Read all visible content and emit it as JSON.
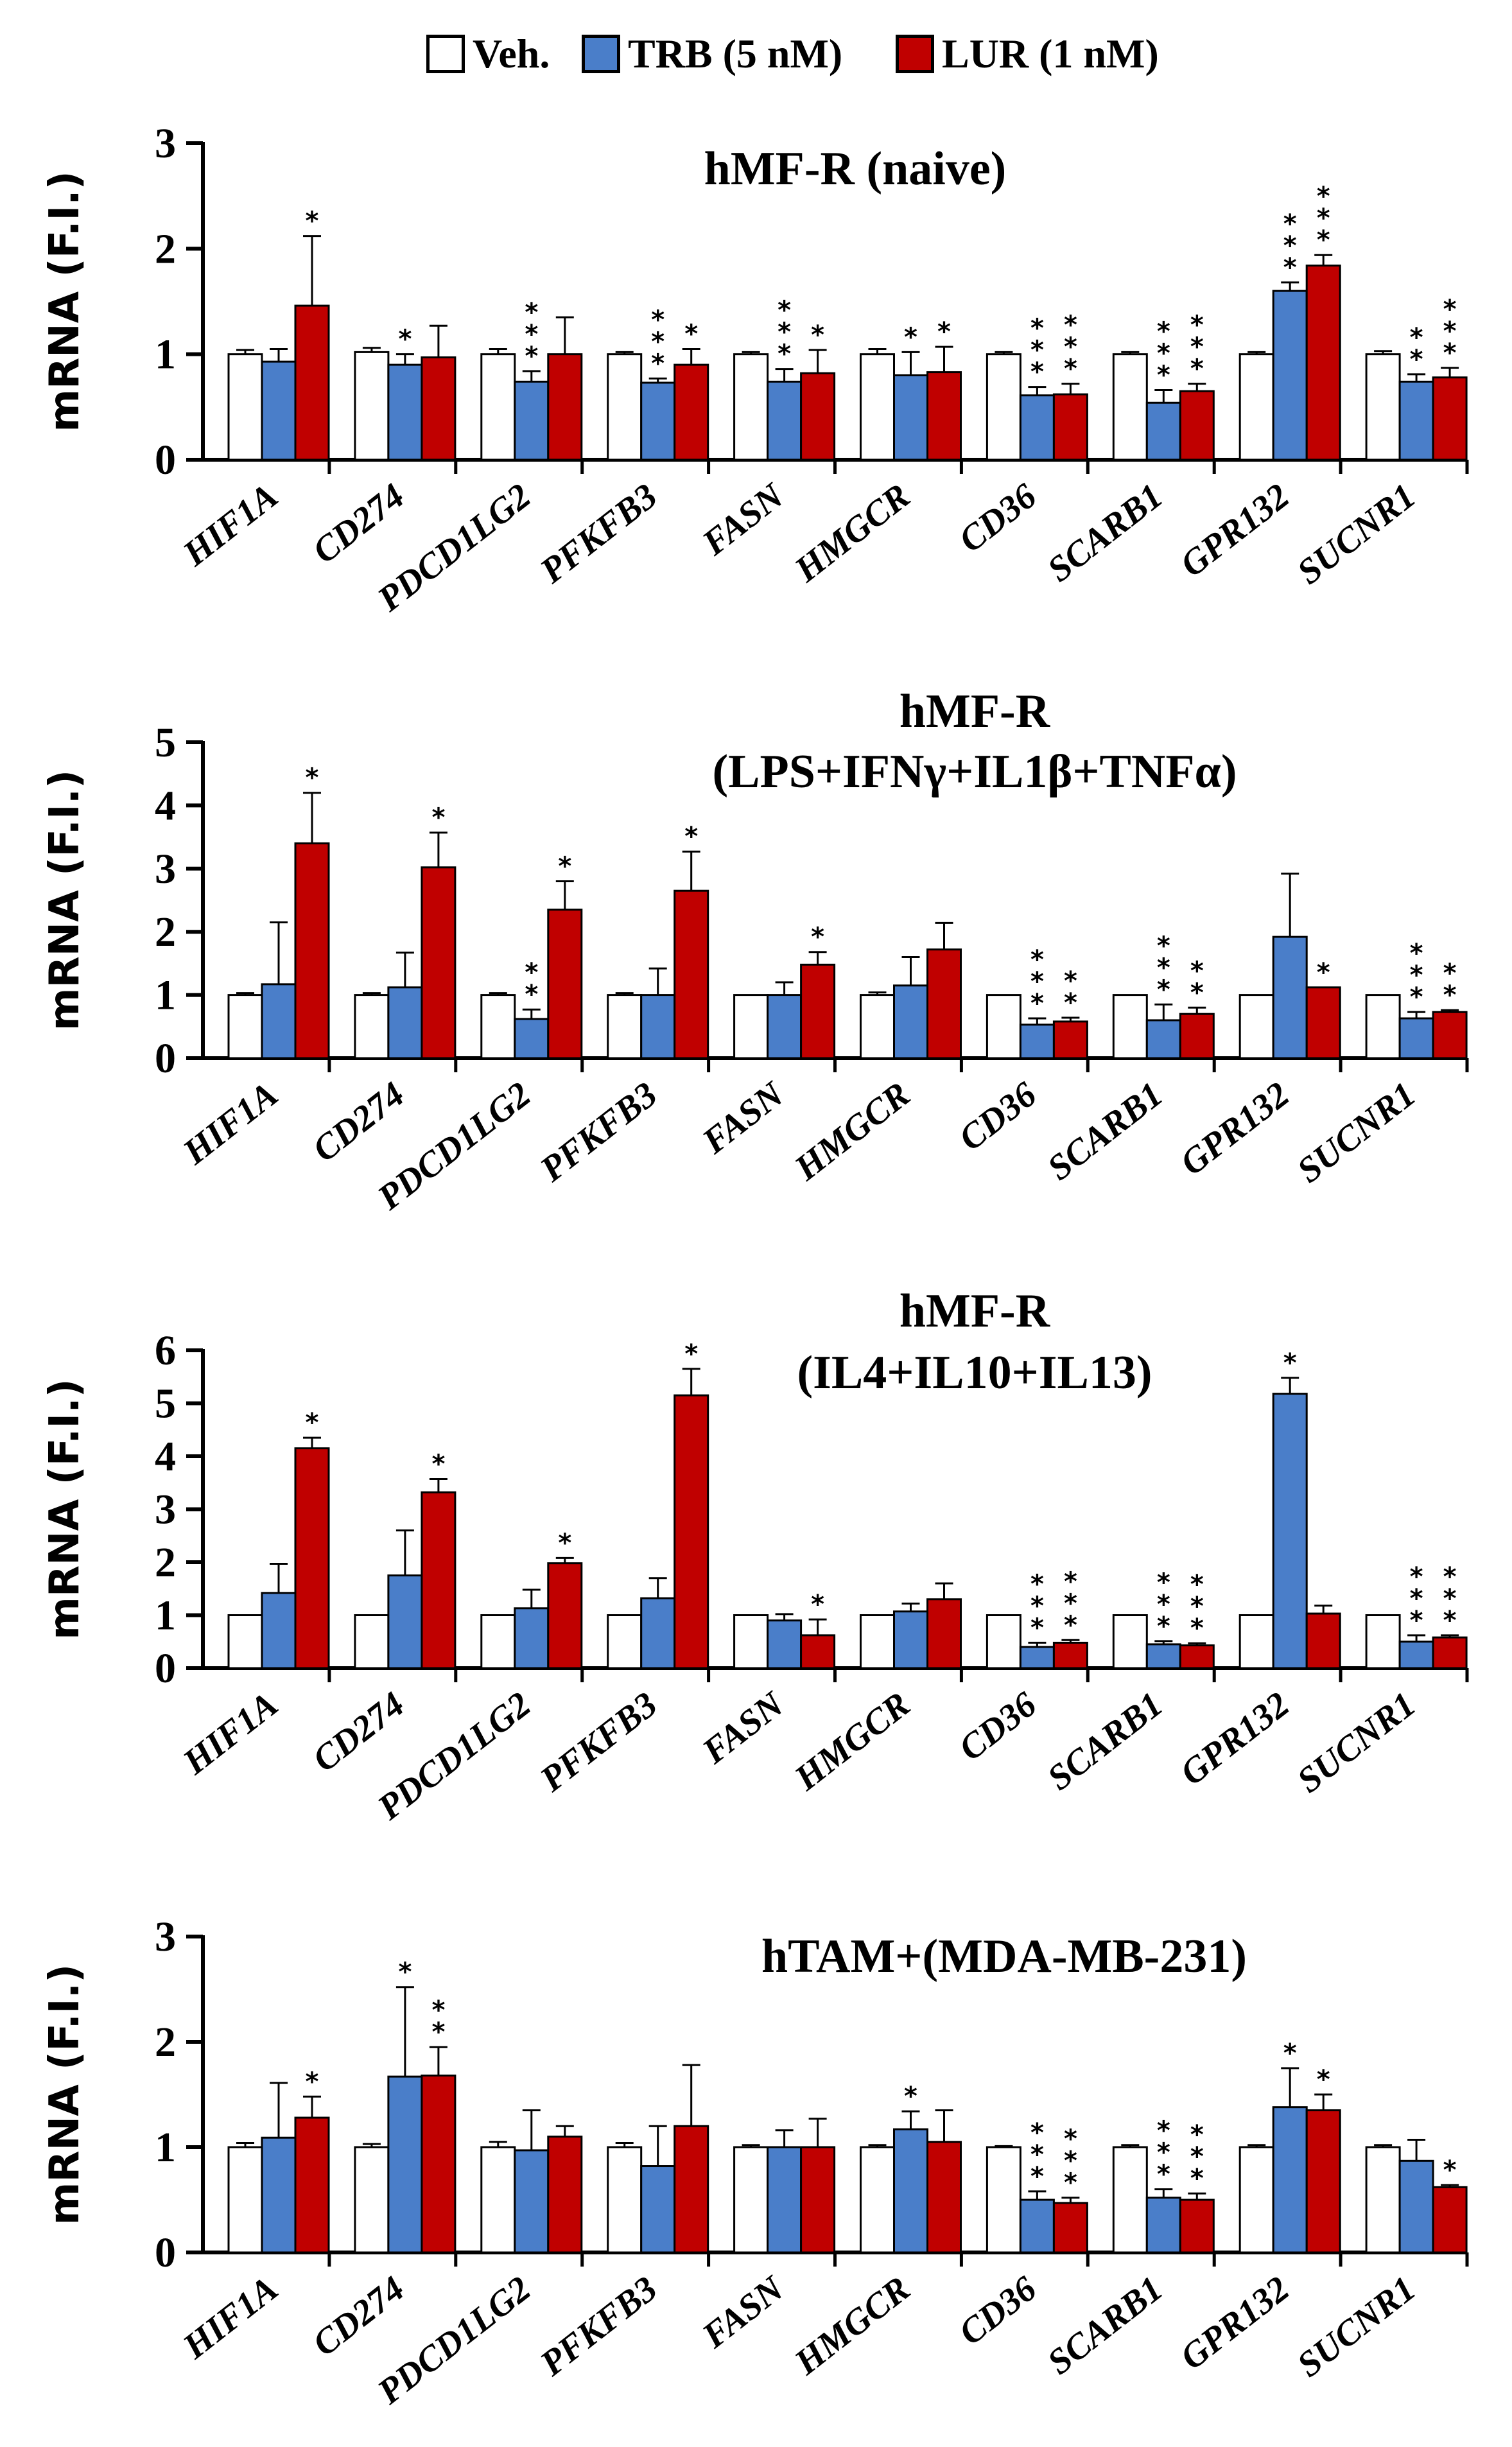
{
  "legend": {
    "items": [
      {
        "label": "Veh.",
        "color": "#ffffff"
      },
      {
        "label": "TRB (5 nM)",
        "color": "#4a7ec9"
      },
      {
        "label": "LUR (1 nM)",
        "color": "#c00000"
      }
    ]
  },
  "chart_data": [
    {
      "type": "bar",
      "title": [
        "hMF-R (naive)"
      ],
      "ylabel": "mRNA (F.I.)",
      "ylim": [
        0,
        3
      ],
      "yticks": [
        "0",
        "1",
        "2",
        "3"
      ],
      "categories": [
        "HIF1A",
        "CD274",
        "PDCD1LG2",
        "PFKFB3",
        "FASN",
        "HMGCR",
        "CD36",
        "SCARB1",
        "GPR132",
        "SUCNR1"
      ],
      "series": [
        {
          "name": "Veh.",
          "values": [
            1.0,
            1.02,
            1.0,
            1.0,
            1.0,
            1.0,
            1.0,
            1.0,
            1.0,
            1.0
          ],
          "errors": [
            0.04,
            0.04,
            0.05,
            0.02,
            0.02,
            0.05,
            0.02,
            0.02,
            0.02,
            0.03
          ],
          "stars": [
            "",
            "",
            "",
            "",
            "",
            "",
            "",
            "",
            "",
            ""
          ]
        },
        {
          "name": "TRB (5 nM)",
          "values": [
            0.93,
            0.9,
            0.74,
            0.73,
            0.74,
            0.8,
            0.61,
            0.54,
            1.6,
            0.74
          ],
          "errors": [
            0.12,
            0.1,
            0.1,
            0.04,
            0.12,
            0.22,
            0.08,
            0.12,
            0.08,
            0.07
          ],
          "stars": [
            "",
            "*",
            "***",
            "***",
            "***",
            "*",
            "***",
            "***",
            "***",
            "**"
          ]
        },
        {
          "name": "LUR (1 nM)",
          "values": [
            1.46,
            0.97,
            1.0,
            0.9,
            0.82,
            0.83,
            0.62,
            0.65,
            1.84,
            0.78
          ],
          "errors": [
            0.66,
            0.3,
            0.35,
            0.15,
            0.22,
            0.24,
            0.1,
            0.07,
            0.1,
            0.09
          ],
          "stars": [
            "*",
            "",
            "",
            "*",
            "*",
            "*",
            "***",
            "***",
            "***",
            "***"
          ]
        }
      ]
    },
    {
      "type": "bar",
      "title": [
        "hMF-R",
        "(LPS+IFNγ+IL1β+TNFα)"
      ],
      "ylabel": "mRNA (F.I.)",
      "ylim": [
        0,
        5
      ],
      "yticks": [
        "0",
        "1",
        "2",
        "3",
        "4",
        "5"
      ],
      "categories": [
        "HIF1A",
        "CD274",
        "PDCD1LG2",
        "PFKFB3",
        "FASN",
        "HMGCR",
        "CD36",
        "SCARB1",
        "GPR132",
        "SUCNR1"
      ],
      "series": [
        {
          "name": "Veh.",
          "values": [
            1.0,
            1.0,
            1.0,
            1.0,
            1.0,
            1.0,
            1.0,
            1.0,
            1.0,
            1.0
          ],
          "errors": [
            0.03,
            0.03,
            0.03,
            0.03,
            0.0,
            0.04,
            0.0,
            0.0,
            0.0,
            0.0
          ],
          "stars": [
            "",
            "",
            "",
            "",
            "",
            "",
            "",
            "",
            "",
            ""
          ]
        },
        {
          "name": "TRB (5 nM)",
          "values": [
            1.17,
            1.12,
            0.62,
            1.0,
            1.0,
            1.15,
            0.53,
            0.6,
            1.92,
            0.63
          ],
          "errors": [
            0.98,
            0.55,
            0.15,
            0.42,
            0.2,
            0.45,
            0.1,
            0.25,
            1.0,
            0.1
          ],
          "stars": [
            "",
            "",
            "**",
            "",
            "",
            "",
            "***",
            "***",
            "",
            "***"
          ]
        },
        {
          "name": "LUR (1 nM)",
          "values": [
            3.4,
            3.02,
            2.35,
            2.65,
            1.48,
            1.72,
            0.58,
            0.7,
            1.12,
            0.73
          ],
          "errors": [
            0.8,
            0.55,
            0.45,
            0.62,
            0.2,
            0.42,
            0.06,
            0.1,
            0.0,
            0.03
          ],
          "stars": [
            "*",
            "*",
            "*",
            "*",
            "*",
            "",
            "**",
            "**",
            "*",
            "**"
          ]
        }
      ]
    },
    {
      "type": "bar",
      "title": [
        "hMF-R",
        "(IL4+IL10+IL13)"
      ],
      "ylabel": "mRNA (F.I.)",
      "ylim": [
        0,
        6
      ],
      "yticks": [
        "0",
        "1",
        "2",
        "3",
        "4",
        "5",
        "6"
      ],
      "categories": [
        "HIF1A",
        "CD274",
        "PDCD1LG2",
        "PFKFB3",
        "FASN",
        "HMGCR",
        "CD36",
        "SCARB1",
        "GPR132",
        "SUCNR1"
      ],
      "series": [
        {
          "name": "Veh.",
          "values": [
            1.0,
            1.0,
            1.0,
            1.0,
            1.0,
            1.0,
            1.0,
            1.0,
            1.0,
            1.0
          ],
          "errors": [
            0.0,
            0.0,
            0.0,
            0.0,
            0.0,
            0.0,
            0.0,
            0.0,
            0.0,
            0.0
          ],
          "stars": [
            "",
            "",
            "",
            "",
            "",
            "",
            "",
            "",
            "",
            ""
          ]
        },
        {
          "name": "TRB (5 nM)",
          "values": [
            1.42,
            1.75,
            1.13,
            1.32,
            0.9,
            1.07,
            0.4,
            0.45,
            5.18,
            0.5
          ],
          "errors": [
            0.55,
            0.85,
            0.35,
            0.38,
            0.12,
            0.15,
            0.08,
            0.06,
            0.3,
            0.12
          ],
          "stars": [
            "",
            "",
            "",
            "",
            "",
            "",
            "***",
            "***",
            "*",
            "***"
          ]
        },
        {
          "name": "LUR (1 nM)",
          "values": [
            4.15,
            3.32,
            1.98,
            5.15,
            0.62,
            1.3,
            0.48,
            0.43,
            1.03,
            0.58
          ],
          "errors": [
            0.2,
            0.25,
            0.1,
            0.5,
            0.3,
            0.3,
            0.05,
            0.04,
            0.15,
            0.04
          ],
          "stars": [
            "*",
            "*",
            "*",
            "*",
            "*",
            "",
            "***",
            "***",
            "",
            "***"
          ]
        }
      ]
    },
    {
      "type": "bar",
      "title": [
        "hTAM+(MDA-MB-231)"
      ],
      "ylabel": "mRNA (F.I.)",
      "ylim": [
        0,
        3
      ],
      "yticks": [
        "0",
        "1",
        "2",
        "3"
      ],
      "categories": [
        "HIF1A",
        "CD274",
        "PDCD1LG2",
        "PFKFB3",
        "FASN",
        "HMGCR",
        "CD36",
        "SCARB1",
        "GPR132",
        "SUCNR1"
      ],
      "series": [
        {
          "name": "Veh.",
          "values": [
            1.0,
            1.0,
            1.0,
            1.0,
            1.0,
            1.0,
            1.0,
            1.0,
            1.0,
            1.0
          ],
          "errors": [
            0.04,
            0.03,
            0.05,
            0.04,
            0.02,
            0.02,
            0.01,
            0.02,
            0.02,
            0.02
          ],
          "stars": [
            "",
            "",
            "",
            "",
            "",
            "",
            "",
            "",
            "",
            ""
          ]
        },
        {
          "name": "TRB (5 nM)",
          "values": [
            1.09,
            1.67,
            0.97,
            0.82,
            1.0,
            1.17,
            0.5,
            0.52,
            1.38,
            0.87
          ],
          "errors": [
            0.52,
            0.85,
            0.38,
            0.38,
            0.16,
            0.17,
            0.08,
            0.08,
            0.37,
            0.2
          ],
          "stars": [
            "",
            "*",
            "",
            "",
            "",
            "*",
            "***",
            "***",
            "*",
            ""
          ]
        },
        {
          "name": "LUR (1 nM)",
          "values": [
            1.28,
            1.68,
            1.1,
            1.2,
            1.0,
            1.05,
            0.47,
            0.5,
            1.35,
            0.62
          ],
          "errors": [
            0.2,
            0.27,
            0.1,
            0.58,
            0.27,
            0.3,
            0.05,
            0.06,
            0.15,
            0.02
          ],
          "stars": [
            "*",
            "**",
            "",
            "",
            "",
            "",
            "***",
            "***",
            "*",
            "*"
          ]
        }
      ]
    }
  ]
}
